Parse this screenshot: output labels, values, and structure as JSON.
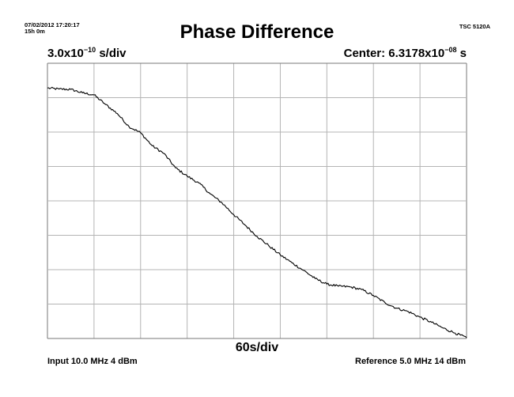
{
  "header": {
    "timestamp": "07/02/2012 17:20:17",
    "duration": "15h 0m",
    "instrument": "TSC 5120A"
  },
  "chart_data": {
    "type": "line",
    "title": "Phase Difference",
    "y_scale": {
      "mantissa": "3.0x10",
      "exponent": "−10",
      "unit": " s/div"
    },
    "center": {
      "prefix": "Center: 6.3178x10",
      "exponent": "−08",
      "unit": " s"
    },
    "x_scale": "60s/div",
    "x_divisions": 9,
    "y_divisions": 8,
    "grid": true,
    "xlim": [
      0,
      540
    ],
    "ylim_div": [
      -4,
      4
    ],
    "series": [
      {
        "x": [
          0,
          15,
          30,
          45,
          60,
          75,
          90,
          105,
          120,
          135,
          150,
          165,
          180,
          195,
          210,
          225,
          240,
          255,
          270,
          285,
          300,
          315,
          330,
          345,
          360,
          375,
          390,
          405,
          420,
          435,
          450,
          465,
          480,
          495,
          510,
          525,
          540
        ],
        "y_div": [
          3.28,
          3.25,
          3.24,
          3.14,
          3.08,
          2.8,
          2.54,
          2.16,
          1.98,
          1.6,
          1.38,
          0.96,
          0.72,
          0.52,
          0.2,
          -0.06,
          -0.4,
          -0.71,
          -1.03,
          -1.3,
          -1.57,
          -1.8,
          -2.02,
          -2.26,
          -2.42,
          -2.48,
          -2.5,
          -2.58,
          -2.75,
          -2.96,
          -3.12,
          -3.22,
          -3.38,
          -3.53,
          -3.7,
          -3.84,
          -3.98
        ]
      }
    ]
  },
  "footer": {
    "input": "Input 10.0 MHz 4 dBm",
    "reference": "Reference 5.0 MHz 14 dBm"
  }
}
